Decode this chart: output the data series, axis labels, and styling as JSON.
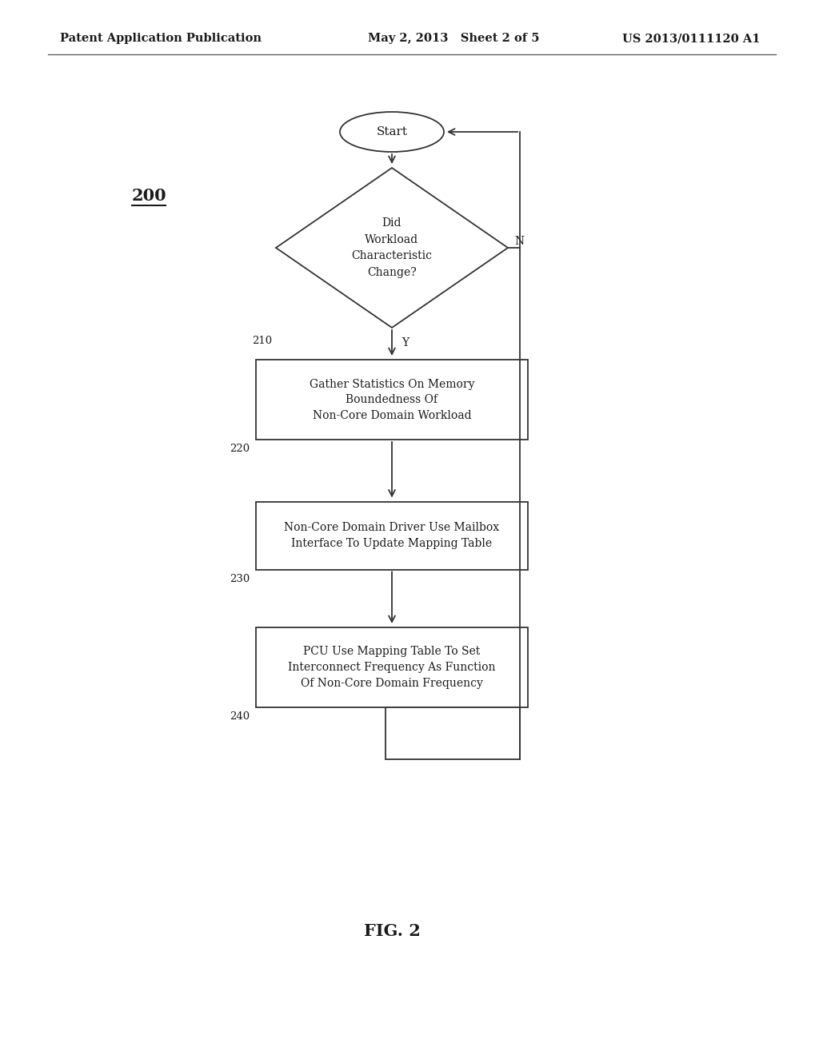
{
  "header_left": "Patent Application Publication",
  "header_mid": "May 2, 2013   Sheet 2 of 5",
  "header_right": "US 2013/0111120 A1",
  "fig_label": "FIG. 2",
  "diagram_label": "200",
  "bg_color": "#ffffff",
  "text_color": "#1a1a1a",
  "box_edge_color": "#333333",
  "start_text": "Start",
  "diamond_text": [
    "Did",
    "Workload",
    "Characteristic",
    "Change?"
  ],
  "diamond_label": "210",
  "diamond_N": "N",
  "diamond_Y": "Y",
  "box1_text": [
    "Gather Statistics On Memory",
    "Boundedness Of",
    "Non-Core Domain Workload"
  ],
  "box1_label": "220",
  "box2_text": [
    "Non-Core Domain Driver Use Mailbox",
    "Interface To Update Mapping Table"
  ],
  "box2_label": "230",
  "box3_text": [
    "PCU Use Mapping Table To Set",
    "Interconnect Frequency As Function",
    "Of Non-Core Domain Frequency"
  ],
  "box3_label": "240",
  "font_size_header": 10.5,
  "font_size_body": 10,
  "font_size_fig": 15
}
